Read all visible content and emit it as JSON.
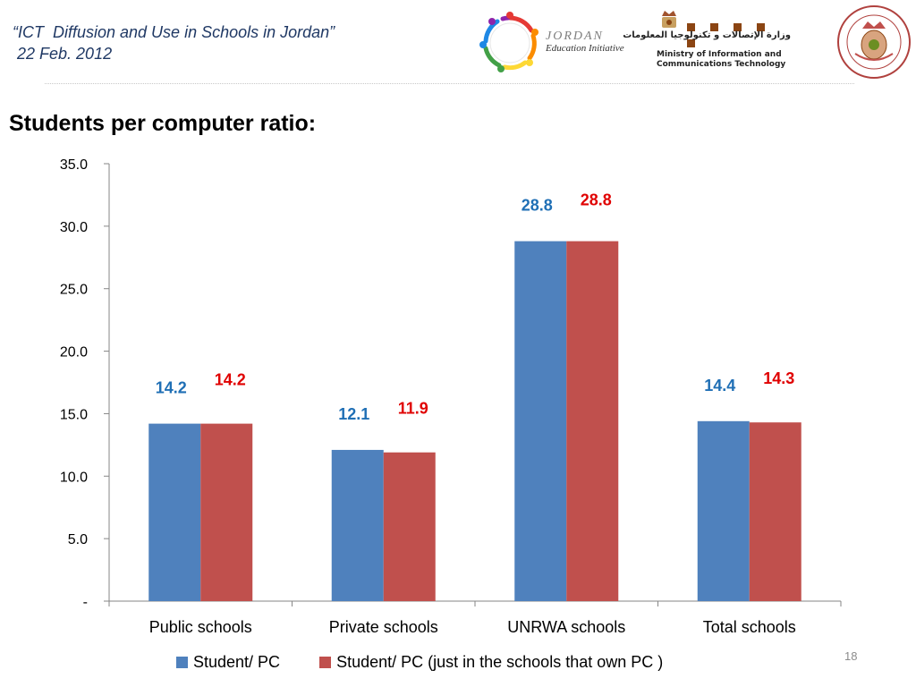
{
  "header": {
    "title_line1": "“ICT  Diffusion and Use in Schools in Jordan”",
    "title_line2": " 22 Feb. 2012"
  },
  "logos": {
    "jei_line1": "JORDAN",
    "jei_line2": "Education Initiative",
    "moict_arabic": "وزارة الإتصالات و تكنولوجيا المعلومات",
    "moict_english_line1": "Ministry of Information and",
    "moict_english_line2": "Communications Technology",
    "seal_icon": "coat-of-arms-icon"
  },
  "page_title": "Students per computer ratio:",
  "page_number": "18",
  "colors": {
    "series1": "#4f81bd",
    "series2": "#c0504d",
    "series1_label": "#1f6fb5",
    "series2_label": "#e00000",
    "header_text": "#1f3864"
  },
  "chart_data": {
    "type": "bar",
    "categories": [
      "Public schools",
      "Private schools",
      "UNRWA schools",
      "Total schools"
    ],
    "series": [
      {
        "name": "Student/ PC",
        "values": [
          14.2,
          12.1,
          28.8,
          14.4
        ]
      },
      {
        "name": "Student/ PC (just in the schools that own PC )",
        "values": [
          14.2,
          11.9,
          28.8,
          14.3
        ]
      }
    ],
    "ylim": [
      0,
      35
    ],
    "yticks": [
      "-",
      "5.0",
      "10.0",
      "15.0",
      "20.0",
      "25.0",
      "30.0",
      "35.0"
    ],
    "ytick_values": [
      0,
      5,
      10,
      15,
      20,
      25,
      30,
      35
    ],
    "data_labels": [
      [
        "14.2",
        "12.1",
        "28.8",
        "14.4"
      ],
      [
        "14.2",
        "11.9",
        "28.8",
        "14.3"
      ]
    ],
    "grid": false,
    "legend_position": "bottom"
  }
}
